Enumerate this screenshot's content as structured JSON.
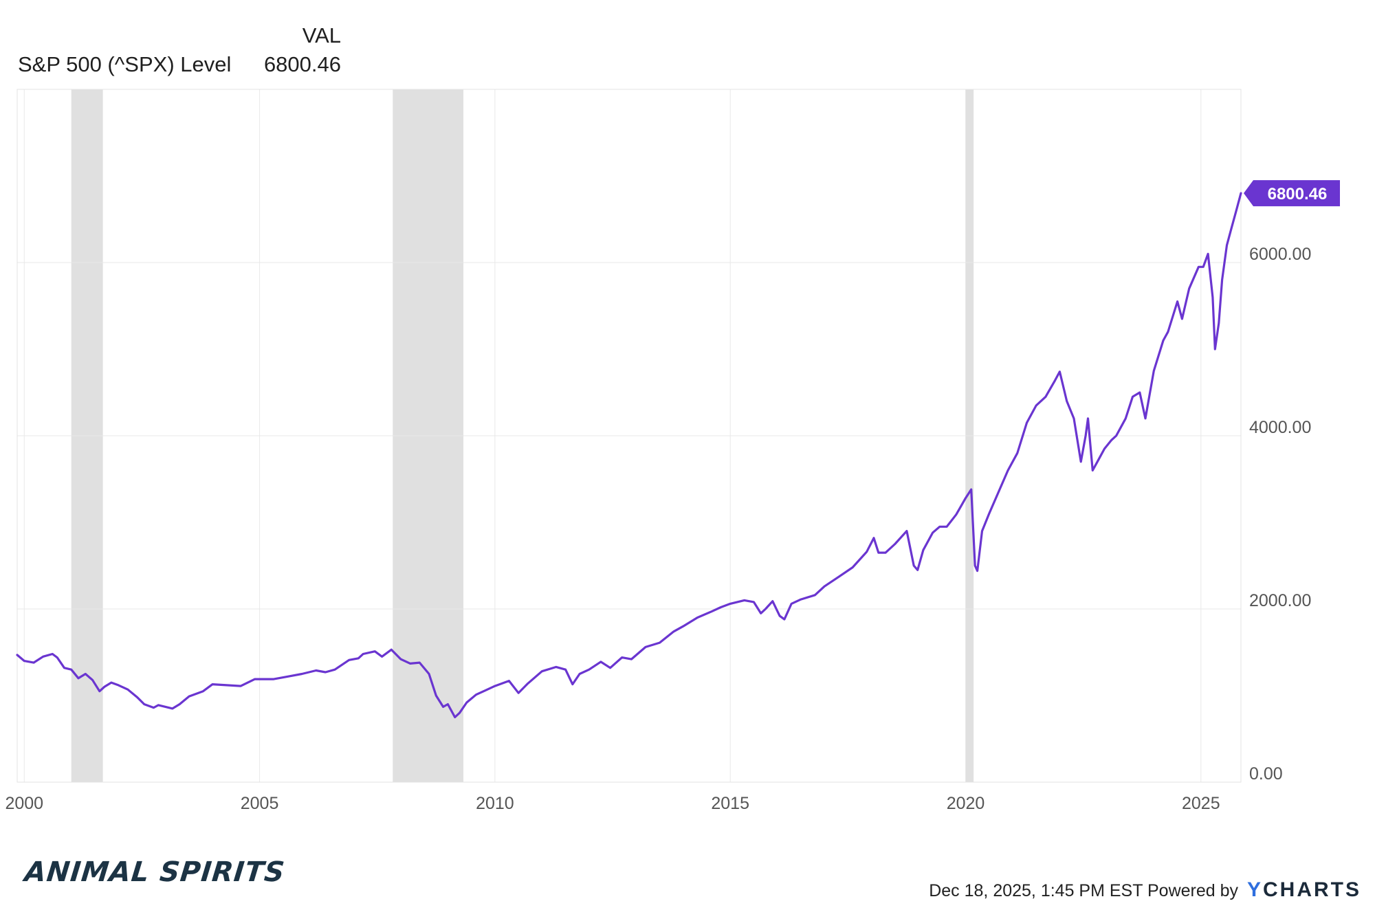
{
  "legend": {
    "value_header": "VAL",
    "series_name": "S&P 500 (^SPX) Level",
    "series_value": "6800.46"
  },
  "footer": {
    "logo_text": "ANIMAL SPIRITS",
    "timestamp": "Dec 18, 2025, 1:45 PM EST",
    "powered_by": "Powered by",
    "brand_y": "Y",
    "brand_rest": "CHARTS"
  },
  "colors": {
    "line": "#6a35d0",
    "recession": "#e0e0e0",
    "grid": "#e8e8e8",
    "badge": "#6a35d0"
  },
  "chart_data": {
    "type": "line",
    "title": "S&P 500 (^SPX) Level",
    "xlabel": "",
    "ylabel": "",
    "xlim": [
      1999.85,
      2025.85
    ],
    "ylim": [
      0,
      8000
    ],
    "x_ticks": [
      2000,
      2005,
      2010,
      2015,
      2020,
      2025
    ],
    "x_tick_labels": [
      "2000",
      "2005",
      "2010",
      "2015",
      "2020",
      "2025"
    ],
    "y_ticks": [
      0,
      2000,
      4000,
      6000
    ],
    "y_tick_labels": [
      "0.00",
      "2000.00",
      "4000.00",
      "6000.00"
    ],
    "last_value_label": "6800.46",
    "recessions": [
      [
        2001.0,
        2001.67
      ],
      [
        2007.83,
        2009.33
      ],
      [
        2020.0,
        2020.17
      ]
    ],
    "series": [
      {
        "name": "S&P 500 (^SPX) Level",
        "x": [
          1999.85,
          2000.0,
          2000.2,
          2000.4,
          2000.6,
          2000.7,
          2000.85,
          2001.0,
          2001.15,
          2001.3,
          2001.45,
          2001.6,
          2001.7,
          2001.85,
          2002.0,
          2002.2,
          2002.4,
          2002.55,
          2002.75,
          2002.85,
          2003.0,
          2003.15,
          2003.3,
          2003.5,
          2003.8,
          2004.0,
          2004.3,
          2004.6,
          2004.9,
          2005.3,
          2005.6,
          2005.9,
          2006.2,
          2006.4,
          2006.6,
          2006.9,
          2007.1,
          2007.2,
          2007.45,
          2007.6,
          2007.8,
          2008.0,
          2008.2,
          2008.4,
          2008.6,
          2008.75,
          2008.9,
          2009.0,
          2009.15,
          2009.25,
          2009.4,
          2009.6,
          2009.8,
          2010.0,
          2010.3,
          2010.5,
          2010.7,
          2011.0,
          2011.3,
          2011.5,
          2011.65,
          2011.8,
          2012.0,
          2012.25,
          2012.45,
          2012.7,
          2012.9,
          2013.2,
          2013.5,
          2013.8,
          2014.0,
          2014.3,
          2014.6,
          2014.8,
          2015.0,
          2015.3,
          2015.5,
          2015.65,
          2015.75,
          2015.9,
          2016.05,
          2016.15,
          2016.3,
          2016.5,
          2016.8,
          2017.0,
          2017.3,
          2017.6,
          2017.9,
          2018.05,
          2018.15,
          2018.3,
          2018.5,
          2018.75,
          2018.9,
          2018.98,
          2019.1,
          2019.3,
          2019.45,
          2019.6,
          2019.8,
          2020.0,
          2020.12,
          2020.2,
          2020.25,
          2020.35,
          2020.5,
          2020.7,
          2020.9,
          2021.1,
          2021.3,
          2021.5,
          2021.7,
          2021.9,
          2022.0,
          2022.15,
          2022.3,
          2022.45,
          2022.55,
          2022.6,
          2022.7,
          2022.8,
          2022.95,
          2023.1,
          2023.2,
          2023.4,
          2023.55,
          2023.7,
          2023.82,
          2024.0,
          2024.2,
          2024.3,
          2024.5,
          2024.6,
          2024.75,
          2024.95,
          2025.05,
          2025.15,
          2025.25,
          2025.3,
          2025.38,
          2025.45,
          2025.55,
          2025.65,
          2025.75,
          2025.85
        ],
        "values": [
          1469,
          1400,
          1380,
          1450,
          1480,
          1440,
          1320,
          1300,
          1200,
          1250,
          1180,
          1050,
          1100,
          1150,
          1120,
          1070,
          980,
          900,
          860,
          890,
          870,
          850,
          900,
          990,
          1050,
          1130,
          1120,
          1110,
          1190,
          1190,
          1220,
          1250,
          1290,
          1270,
          1300,
          1410,
          1430,
          1480,
          1510,
          1450,
          1530,
          1420,
          1370,
          1380,
          1250,
          1000,
          870,
          900,
          750,
          800,
          920,
          1010,
          1060,
          1110,
          1170,
          1030,
          1140,
          1280,
          1330,
          1300,
          1130,
          1250,
          1300,
          1390,
          1320,
          1440,
          1420,
          1560,
          1610,
          1740,
          1800,
          1900,
          1970,
          2020,
          2060,
          2100,
          2080,
          1950,
          2000,
          2090,
          1920,
          1880,
          2060,
          2110,
          2160,
          2260,
          2370,
          2480,
          2660,
          2820,
          2650,
          2650,
          2750,
          2900,
          2500,
          2450,
          2680,
          2880,
          2950,
          2950,
          3090,
          3280,
          3380,
          2500,
          2440,
          2900,
          3100,
          3350,
          3600,
          3800,
          4150,
          4350,
          4450,
          4640,
          4740,
          4400,
          4200,
          3700,
          4000,
          4200,
          3600,
          3700,
          3850,
          3950,
          4000,
          4200,
          4450,
          4500,
          4200,
          4750,
          5100,
          5200,
          5550,
          5350,
          5700,
          5950,
          5950,
          6100,
          5600,
          5000,
          5300,
          5800,
          6200,
          6400,
          6600,
          6800.46
        ]
      }
    ]
  }
}
